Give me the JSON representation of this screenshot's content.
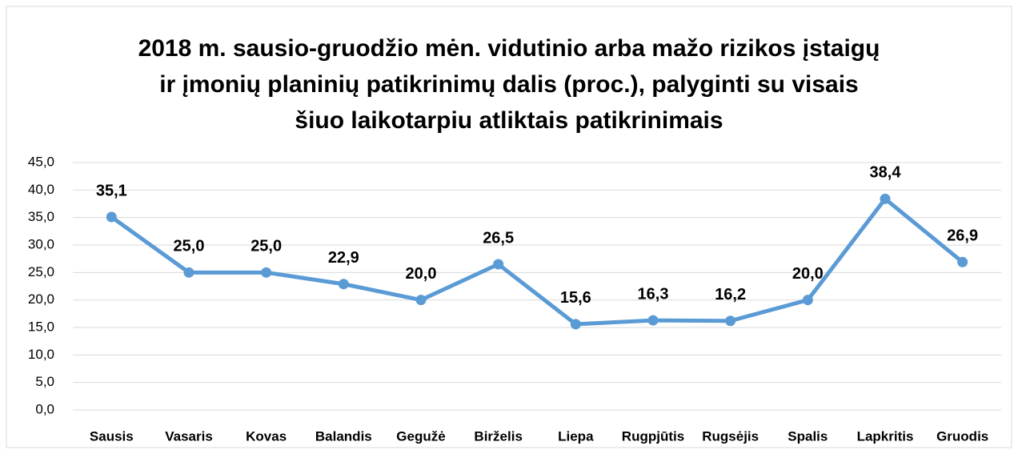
{
  "chart_data": {
    "type": "line",
    "title": [
      "2018 m. sausio-gruodžio mėn. vidutinio arba mažo rizikos įstaigų",
      "ir įmonių planinių patikrinimų dalis (proc.), palyginti su visais",
      "šiuo laikotarpiu atliktais patikrinimais"
    ],
    "categories": [
      "Sausis",
      "Vasaris",
      "Kovas",
      "Balandis",
      "Gegužė",
      "Birželis",
      "Liepa",
      "Rugpjūtis",
      "Rugsėjis",
      "Spalis",
      "Lapkritis",
      "Gruodis"
    ],
    "series": [
      {
        "color": "#5b9bd5",
        "values": [
          35.1,
          25.0,
          25.0,
          22.9,
          20.0,
          26.5,
          15.6,
          16.3,
          16.2,
          20.0,
          38.4,
          26.9
        ],
        "value_labels": [
          "35,1",
          "25,0",
          "25,0",
          "22,9",
          "20,0",
          "26,5",
          "15,6",
          "16,3",
          "16,2",
          "20,0",
          "38,4",
          "26,9"
        ]
      }
    ],
    "ylim": [
      0,
      45
    ],
    "yticks": [
      {
        "value": 0,
        "label": "0,0"
      },
      {
        "value": 5,
        "label": "5,0"
      },
      {
        "value": 10,
        "label": "10,0"
      },
      {
        "value": 15,
        "label": "15,0"
      },
      {
        "value": 20,
        "label": "20,0"
      },
      {
        "value": 25,
        "label": "25,0"
      },
      {
        "value": 30,
        "label": "30,0"
      },
      {
        "value": 35,
        "label": "35,0"
      },
      {
        "value": 40,
        "label": "40,0"
      },
      {
        "value": 45,
        "label": "45,0"
      }
    ],
    "grid": true
  }
}
